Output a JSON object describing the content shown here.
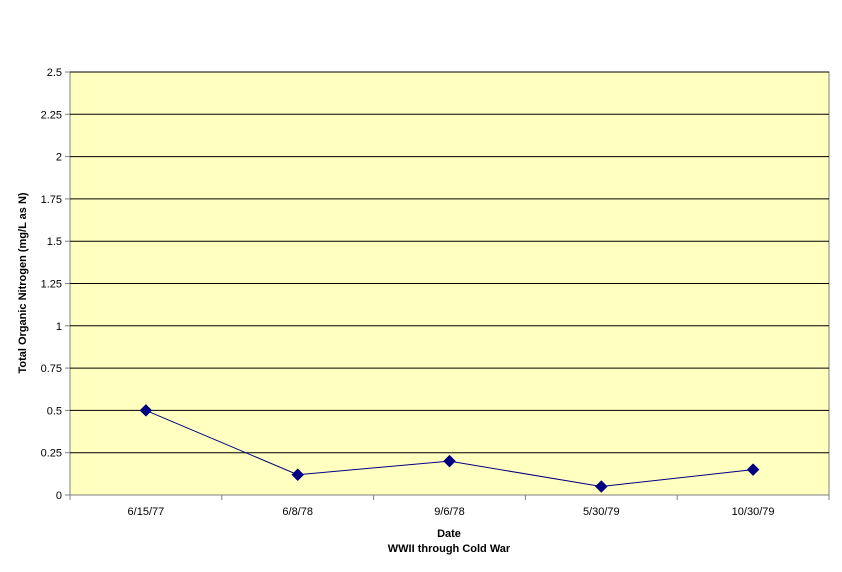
{
  "chart_data": {
    "type": "line",
    "title": "",
    "xlabel": "Date",
    "xlabel_sub": "WWII through Cold War",
    "ylabel": "Total Organic Nitrogen (mg/L as N)",
    "categories": [
      "6/15/77",
      "6/8/78",
      "9/6/78",
      "5/30/79",
      "10/30/79"
    ],
    "series": [
      {
        "values": [
          0.5,
          0.12,
          0.2,
          0.05,
          0.15
        ]
      }
    ],
    "ylim": [
      0,
      2.5
    ],
    "yticks": [
      "0",
      "0.25",
      "0.5",
      "0.75",
      "1",
      "1.25",
      "1.5",
      "1.75",
      "2",
      "2.25",
      "2.5"
    ],
    "grid": true,
    "legend": "none",
    "colors": {
      "plot_background": "#ffffc0",
      "line": "#000080",
      "marker": "#000080",
      "gridline": "#000000",
      "axis": "#808080"
    }
  }
}
